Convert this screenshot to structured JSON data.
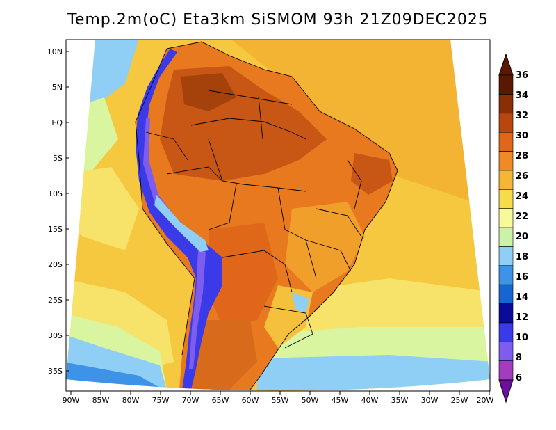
{
  "title": "Temp.2m(oC) Eta3km SiSMOM 93h 21Z09DEC2025",
  "axes": {
    "lat_labels": [
      "10N",
      "5N",
      "EQ",
      "5S",
      "10S",
      "15S",
      "20S",
      "25S",
      "30S",
      "35S"
    ],
    "lon_labels": [
      "90W",
      "85W",
      "80W",
      "75W",
      "70W",
      "65W",
      "60W",
      "55W",
      "50W",
      "45W",
      "40W",
      "35W",
      "30W",
      "25W",
      "20W"
    ]
  },
  "colorbar": {
    "levels": [
      "6",
      "8",
      "10",
      "12",
      "14",
      "16",
      "18",
      "20",
      "22",
      "24",
      "26",
      "28",
      "30",
      "32",
      "34",
      "36"
    ],
    "colors": [
      "#7a1fa2",
      "#a43cc0",
      "#7f5cf0",
      "#3a3ae8",
      "#0b0b9a",
      "#1466d2",
      "#3c93e8",
      "#8fcef5",
      "#ccf2a8",
      "#f7f99a",
      "#f5dc4a",
      "#f5b733",
      "#f08a26",
      "#e0661a",
      "#b8470e",
      "#8a2e05",
      "#5a1800"
    ],
    "under_color": "#6a0fa0",
    "over_color": "#5a1800"
  },
  "palette": {
    "ocean_warm": "#f5c13c",
    "ocean_mid": "#f7e36a",
    "ocean_cool": "#d9f5a0",
    "ocean_cold": "#8fcef5",
    "ocean_colder": "#3c93e8",
    "land_hot": "#e8731e",
    "land_hotter": "#c85614",
    "land_mild": "#f0a02a",
    "andes": "#3a3ae8",
    "andes_peak": "#7f5cf0",
    "border": "#000000"
  }
}
